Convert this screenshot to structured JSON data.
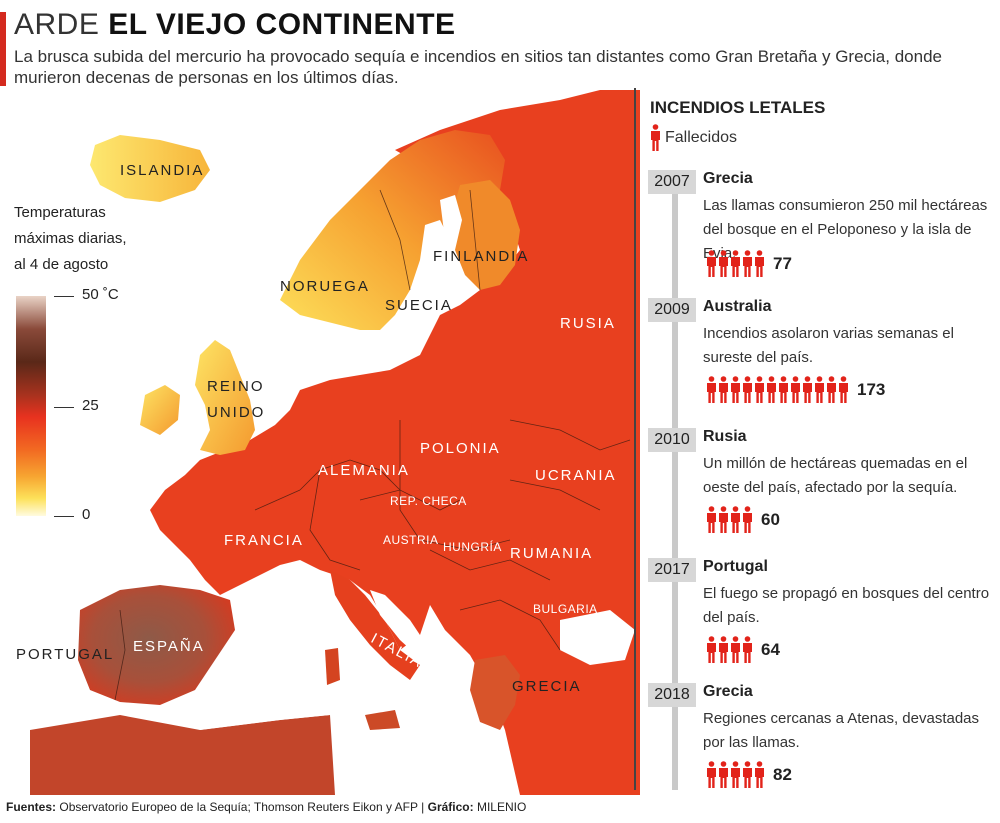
{
  "header": {
    "title_light": "ARDE",
    "title_bold": "EL VIEJO CONTINENTE",
    "subtitle": "La brusca subida del mercurio ha provocado sequía e incendios en sitios tan distantes como Gran Bretaña y Grecia, donde murieron decenas de personas en los últimos días.",
    "accent_color": "#d42a1f"
  },
  "legend": {
    "title_lines": [
      "Temperaturas",
      "máximas diarias,",
      "al 4 de agosto"
    ],
    "max_label": "50 ˚C",
    "mid_label": "25",
    "min_label": "0"
  },
  "map": {
    "labels": {
      "islandia": "ISLANDIA",
      "noruega": "NORUEGA",
      "suecia": "SUECIA",
      "finlandia": "FINLANDIA",
      "rusia": "RUSIA",
      "reino_unido_1": "REINO",
      "reino_unido_2": "UNIDO",
      "polonia": "POLONIA",
      "alemania": "ALEMANIA",
      "rep_checa": "REP. CHECA",
      "ucrania": "UCRANIA",
      "francia": "FRANCIA",
      "austria": "AUSTRIA",
      "hungria": "HUNGRÍA",
      "rumania": "RUMANIA",
      "bulgaria": "BULGARIA",
      "portugal": "PORTUGAL",
      "espana": "ESPAÑA",
      "italia": "ITALIA",
      "grecia": "GRECIA"
    }
  },
  "panel": {
    "title": "INCENDIOS LETALES",
    "legend_label": "Fallecidos",
    "icon_color": "#e2231a",
    "events": [
      {
        "year": "2007",
        "country": "Grecia",
        "description": "Las llamas consumieron 250 mil hectáreas del bosque en el Peloponeso y la isla de Evia.",
        "deaths": "77",
        "deaths_value": 77
      },
      {
        "year": "2009",
        "country": "Australia",
        "description": "Incendios asolaron varias semanas el sureste del país.",
        "deaths": "173",
        "deaths_value": 173
      },
      {
        "year": "2010",
        "country": "Rusia",
        "description": "Un millón de hectáreas quemadas en el oeste del país, afectado por la sequía.",
        "deaths": "60",
        "deaths_value": 60
      },
      {
        "year": "2017",
        "country": "Portugal",
        "description": "El fuego se propagó en bosques del centro del país.",
        "deaths": "64",
        "deaths_value": 64
      },
      {
        "year": "2018",
        "country": "Grecia",
        "description": "Regiones cercanas a Atenas, devastadas por las llamas.",
        "deaths": "82",
        "deaths_value": 82
      }
    ]
  },
  "footer": {
    "sources_label": "Fuentes:",
    "sources_text": "Observatorio Europeo de la Sequía; Thomson Reuters Eikon y AFP",
    "separator": "|",
    "graphic_label": "Gráfico:",
    "graphic_text": "MILENIO"
  }
}
